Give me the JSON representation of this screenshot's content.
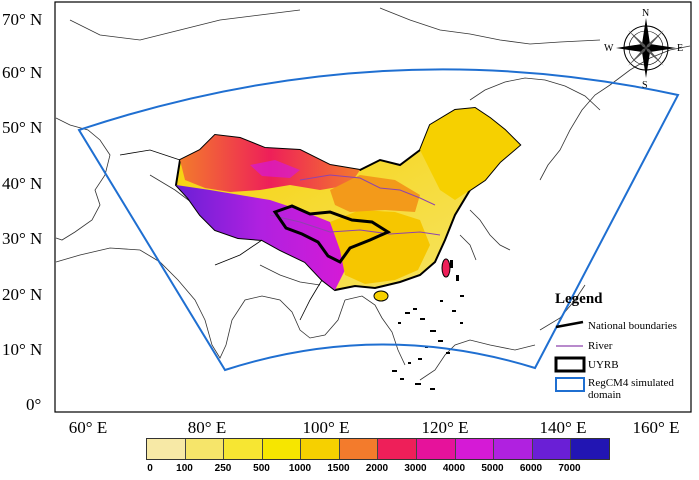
{
  "lat_labels": [
    "70° N",
    "60° N",
    "50° N",
    "40° N",
    "30° N",
    "20° N",
    "10° N",
    "0°"
  ],
  "lon_labels": [
    "60° E",
    "80° E",
    "100° E",
    "120° E",
    "140° E",
    "160° E"
  ],
  "compass": {
    "n": "N",
    "s": "S",
    "e": "E",
    "w": "W"
  },
  "legend": {
    "title": "Legend",
    "items": [
      {
        "label": "National boundaries",
        "symbol": "black-line",
        "color": "#000000"
      },
      {
        "label": "River",
        "symbol": "purple-line",
        "color": "#8e44ad"
      },
      {
        "label": "UYRB",
        "symbol": "thick-black-box",
        "color": "#000000"
      },
      {
        "label": "RegCM4 simulated domain",
        "symbol": "blue-box",
        "color": "#1f6fd1"
      }
    ]
  },
  "colorbar": {
    "ticks": [
      "0",
      "100",
      "250",
      "500",
      "1000",
      "1500",
      "2000",
      "3000",
      "4000",
      "5000",
      "6000",
      "7000"
    ],
    "colors": [
      "#f7e9a6",
      "#f6e56a",
      "#f7e632",
      "#f6e600",
      "#f6d000",
      "#f37b2c",
      "#ee1f59",
      "#e6129b",
      "#d51ad6",
      "#b021e0",
      "#6a1fd6",
      "#2215b3"
    ]
  },
  "colors": {
    "domain_border": "#1f6fd1",
    "coast": "#333333"
  }
}
